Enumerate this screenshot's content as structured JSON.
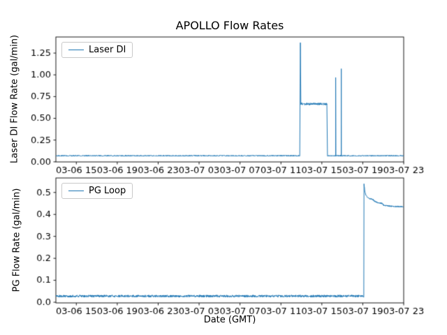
{
  "figure": {
    "background": "#ffffff",
    "text_color": "#000000"
  },
  "chart_data": [
    {
      "type": "line",
      "title": "APOLLO Flow Rates",
      "ylabel": "Laser DI Flow Rate (gal/min)",
      "xlabel": "",
      "legend": [
        "Laser DI"
      ],
      "legend_position": "upper left",
      "line_color": "#1f77b4",
      "xlim_hours": [
        0,
        34
      ],
      "x_epoch": "03-06 13:00 GMT",
      "x_tick_hours": [
        2,
        6,
        10,
        14,
        18,
        22,
        26,
        30,
        34
      ],
      "x_tick_labels": [
        "03-06 15",
        "03-06 19",
        "03-06 23",
        "03-07 03",
        "03-07 07",
        "03-07 11",
        "03-07 15",
        "03-07 19",
        "03-07 23"
      ],
      "ylim": [
        -0.001,
        1.435
      ],
      "y_tick_values": [
        0,
        0.25,
        0.5,
        0.75,
        1.0,
        1.25
      ],
      "y_tick_labels": [
        "0.00",
        "0.25",
        "0.50",
        "0.75",
        "1.00",
        "1.25"
      ],
      "series": [
        {
          "name": "Laser DI",
          "baseline_segments": [
            {
              "t0": 0,
              "t1": 23.85,
              "level": 0.07,
              "noise": 0.006
            },
            {
              "t0": 23.95,
              "t1": 26.5,
              "level": 0.665,
              "noise": 0.013
            },
            {
              "t0": 26.55,
              "t1": 34,
              "level": 0.07,
              "noise": 0.006
            }
          ],
          "spikes": [
            {
              "t": 23.9,
              "peak": 1.37
            },
            {
              "t": 27.35,
              "peak": 0.97
            },
            {
              "t": 27.9,
              "peak": 1.07
            }
          ]
        }
      ]
    },
    {
      "type": "line",
      "title": "",
      "ylabel": "PG Flow Rate (gal/min)",
      "xlabel": "Date (GMT)",
      "legend": [
        "PG Loop"
      ],
      "legend_position": "upper left",
      "line_color": "#1f77b4",
      "xlim_hours": [
        0,
        34
      ],
      "x_epoch": "03-06 13:00 GMT",
      "x_tick_hours": [
        2,
        6,
        10,
        14,
        18,
        22,
        26,
        30,
        34
      ],
      "x_tick_labels": [
        "03-06 15",
        "03-06 19",
        "03-06 23",
        "03-07 03",
        "03-07 07",
        "03-07 11",
        "03-07 15",
        "03-07 19",
        "03-07 23"
      ],
      "ylim": [
        -0.003,
        0.566
      ],
      "y_tick_values": [
        0,
        0.1,
        0.2,
        0.3,
        0.4,
        0.5
      ],
      "y_tick_labels": [
        "0.0",
        "0.1",
        "0.2",
        "0.3",
        "0.4",
        "0.5"
      ],
      "series": [
        {
          "name": "PG Loop",
          "baseline_segments": [
            {
              "t0": 0,
              "t1": 30.1,
              "level": 0.028,
              "noise": 0.005
            }
          ],
          "profile_points": [
            [
              30.1,
              0.028
            ],
            [
              30.12,
              0.54
            ],
            [
              30.2,
              0.505
            ],
            [
              30.3,
              0.487
            ],
            [
              30.45,
              0.478
            ],
            [
              30.6,
              0.472
            ],
            [
              30.8,
              0.47
            ],
            [
              31.0,
              0.468
            ],
            [
              31.15,
              0.46
            ],
            [
              31.4,
              0.455
            ],
            [
              31.7,
              0.452
            ],
            [
              31.9,
              0.45
            ],
            [
              32.0,
              0.443
            ],
            [
              32.3,
              0.44
            ],
            [
              32.7,
              0.438
            ],
            [
              33.2,
              0.436
            ],
            [
              34.0,
              0.435
            ]
          ],
          "profile_noise": 0.003
        }
      ]
    }
  ]
}
